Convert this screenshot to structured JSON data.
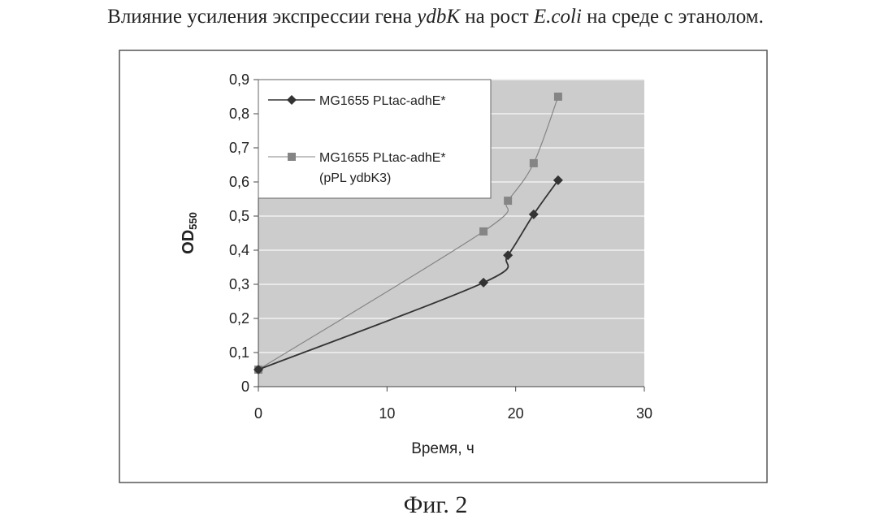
{
  "heading": {
    "part1": "Влияние усиления экспрессии гена ",
    "gene": "ydbK",
    "part2": " на рост ",
    "organism": "E.coli",
    "part3": " на среде с этанолом."
  },
  "caption": "Фиг. 2",
  "chart_data": {
    "type": "line",
    "title": "",
    "xlabel": "Время, ч",
    "ylabel": "OD",
    "ylabel_sub": "550",
    "xlim": [
      0,
      30
    ],
    "ylim": [
      0,
      0.9
    ],
    "x_ticks": [
      0,
      10,
      20,
      30
    ],
    "x_tick_labels": [
      "0",
      "10",
      "20",
      "30"
    ],
    "y_ticks": [
      0,
      0.1,
      0.2,
      0.3,
      0.4,
      0.5,
      0.6,
      0.7,
      0.8,
      0.9
    ],
    "y_tick_labels": [
      "0",
      "0,1",
      "0,2",
      "0,3",
      "0,4",
      "0,5",
      "0,6",
      "0,7",
      "0,8",
      "0,9"
    ],
    "grid": "horizontal",
    "legend_position": "top-left",
    "series": [
      {
        "name": "MG1655 PLtac-adhE*",
        "marker": "diamond",
        "color": "#333333",
        "x": [
          0,
          17.5,
          19.4,
          21.4,
          23.3
        ],
        "y": [
          0.05,
          0.305,
          0.385,
          0.505,
          0.605
        ]
      },
      {
        "name": "MG1655 PLtac-adhE* (pPL ydbK3)",
        "name_line1": "MG1655 PLtac-adhE*",
        "name_line2": "(pPL ydbK3)",
        "marker": "square",
        "color": "#858585",
        "x": [
          0,
          17.5,
          19.4,
          21.4,
          23.3
        ],
        "y": [
          0.05,
          0.455,
          0.545,
          0.655,
          0.85
        ]
      }
    ]
  }
}
